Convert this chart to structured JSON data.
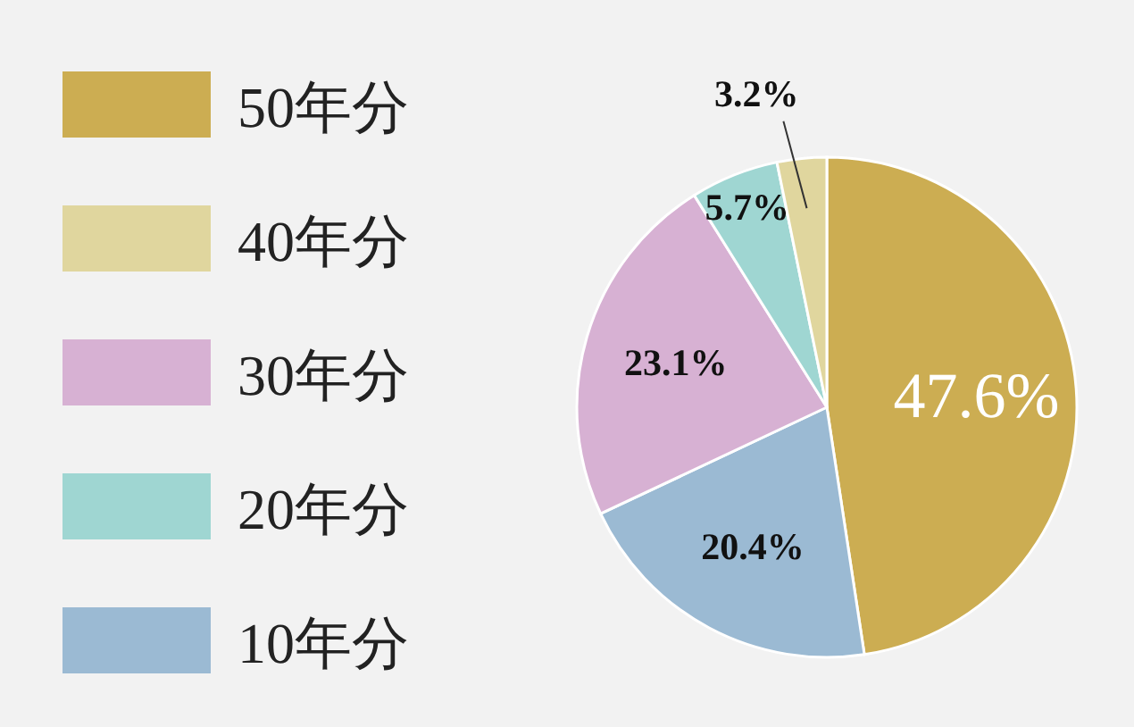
{
  "chart_data": {
    "type": "pie",
    "categories": [
      "50年分",
      "10年分",
      "30年分",
      "20年分",
      "40年分"
    ],
    "values": [
      47.6,
      20.4,
      23.1,
      5.7,
      3.2
    ],
    "colors": [
      "#ccad52",
      "#9bbad3",
      "#d7b1d3",
      "#9fd6d2",
      "#e0d69e"
    ],
    "value_labels": [
      "47.6%",
      "20.4%",
      "23.1%",
      "5.7%",
      "3.2%"
    ],
    "legend": "left"
  }
}
